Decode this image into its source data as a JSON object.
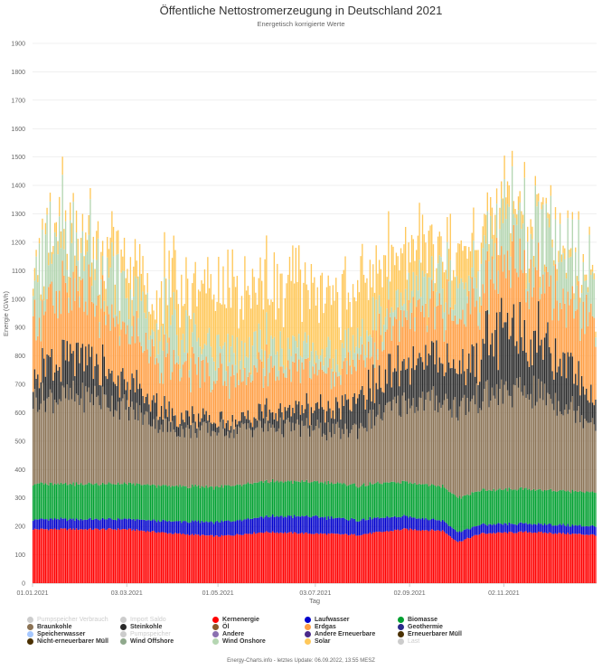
{
  "header": {
    "title": "Öffentliche Nettostromerzeugung in Deutschland 2021",
    "subtitle": "Energetisch korrigierte Werte"
  },
  "footer": {
    "text": "Energy-Charts.info - letztes Update: 06.09.2022, 13:55 MESZ"
  },
  "colors": {
    "background": "#ffffff",
    "grid": "#e6e6e6",
    "axis": "#cccccc"
  },
  "chart_data": {
    "type": "bar",
    "stacked": true,
    "title": "Öffentliche Nettostromerzeugung in Deutschland 2021",
    "subtitle": "Energetisch korrigierte Werte",
    "xlabel": "Tag",
    "ylabel": "Energie (GWh)",
    "ylim": [
      0,
      1900
    ],
    "yticks": [
      0,
      100,
      200,
      300,
      400,
      500,
      600,
      700,
      800,
      900,
      1000,
      1100,
      1200,
      1300,
      1400,
      1500,
      1600,
      1700,
      1800,
      1900
    ],
    "xtick_labels": [
      "01.01.2021",
      "03.03.2021",
      "01.05.2021",
      "03.07.2021",
      "02.09.2021",
      "02.11.2021"
    ],
    "xtick_days": [
      0,
      61,
      120,
      183,
      244,
      305
    ],
    "days": 365,
    "grid": true,
    "legend_position": "bottom",
    "series": [
      {
        "name": "Kernenergie",
        "color": "#ff0000",
        "shown": true,
        "anchors": [
          [
            0,
            190
          ],
          [
            60,
            190
          ],
          [
            90,
            175
          ],
          [
            120,
            165
          ],
          [
            150,
            180
          ],
          [
            180,
            175
          ],
          [
            210,
            170
          ],
          [
            240,
            190
          ],
          [
            265,
            185
          ],
          [
            275,
            145
          ],
          [
            290,
            175
          ],
          [
            320,
            180
          ],
          [
            364,
            170
          ]
        ]
      },
      {
        "name": "Laufwasser",
        "color": "#0000cc",
        "shown": true,
        "anchors": [
          [
            0,
            35
          ],
          [
            60,
            35
          ],
          [
            120,
            50
          ],
          [
            180,
            60
          ],
          [
            240,
            45
          ],
          [
            270,
            35
          ],
          [
            300,
            30
          ],
          [
            364,
            30
          ]
        ]
      },
      {
        "name": "Biomasse",
        "color": "#00a030",
        "shown": true,
        "anchors": [
          [
            0,
            125
          ],
          [
            364,
            120
          ]
        ]
      },
      {
        "name": "Braunkohle",
        "color": "#8b7355",
        "shown": true,
        "anchors": [
          [
            0,
            300
          ],
          [
            40,
            310
          ],
          [
            90,
            200
          ],
          [
            120,
            200
          ],
          [
            170,
            190
          ],
          [
            200,
            180
          ],
          [
            240,
            280
          ],
          [
            270,
            310
          ],
          [
            300,
            340
          ],
          [
            330,
            340
          ],
          [
            364,
            250
          ]
        ]
      },
      {
        "name": "Steinkohle",
        "color": "#2a2a2a",
        "shown": true,
        "anchors": [
          [
            0,
            100
          ],
          [
            30,
            130
          ],
          [
            60,
            90
          ],
          [
            90,
            50
          ],
          [
            130,
            30
          ],
          [
            180,
            70
          ],
          [
            240,
            130
          ],
          [
            280,
            140
          ],
          [
            310,
            220
          ],
          [
            340,
            180
          ],
          [
            364,
            90
          ]
        ]
      },
      {
        "name": "Erdgas",
        "color": "#ff9f45",
        "shown": true,
        "anchors": [
          [
            0,
            200
          ],
          [
            30,
            220
          ],
          [
            60,
            180
          ],
          [
            100,
            170
          ],
          [
            150,
            150
          ],
          [
            200,
            130
          ],
          [
            240,
            160
          ],
          [
            280,
            190
          ],
          [
            320,
            230
          ],
          [
            364,
            250
          ]
        ]
      },
      {
        "name": "Wind Onshore",
        "color": "#b5d6b2",
        "shown": true,
        "anchors": [
          [
            0,
            180
          ],
          [
            40,
            160
          ],
          [
            60,
            140
          ],
          [
            120,
            90
          ],
          [
            180,
            60
          ],
          [
            240,
            70
          ],
          [
            280,
            110
          ],
          [
            320,
            170
          ],
          [
            364,
            150
          ]
        ]
      },
      {
        "name": "Solar",
        "color": "#ffc85a",
        "shown": true,
        "anchors": [
          [
            0,
            30
          ],
          [
            60,
            90
          ],
          [
            120,
            210
          ],
          [
            170,
            230
          ],
          [
            220,
            190
          ],
          [
            270,
            120
          ],
          [
            320,
            40
          ],
          [
            364,
            20
          ]
        ]
      }
    ]
  },
  "legend": [
    {
      "label": "Pumpspeicher Verbrauch",
      "color": "#cccccc",
      "shown": false
    },
    {
      "label": "Import Saldo",
      "color": "#cccccc",
      "shown": false
    },
    {
      "label": "Kernenergie",
      "color": "#ff0000",
      "shown": true
    },
    {
      "label": "Laufwasser",
      "color": "#0000cc",
      "shown": true
    },
    {
      "label": "Biomasse",
      "color": "#00a030",
      "shown": true
    },
    {
      "label": "Braunkohle",
      "color": "#8b7355",
      "shown": true
    },
    {
      "label": "Steinkohle",
      "color": "#2a2a2a",
      "shown": true
    },
    {
      "label": "Öl",
      "color": "#8b5a2b",
      "shown": true
    },
    {
      "label": "Erdgas",
      "color": "#ff9f45",
      "shown": true
    },
    {
      "label": "Geothermie",
      "color": "#2a2a8a",
      "shown": true
    },
    {
      "label": "Speicherwasser",
      "color": "#a6c8ff",
      "shown": true
    },
    {
      "label": "Pumpspeicher",
      "color": "#cccccc",
      "shown": false
    },
    {
      "label": "Andere",
      "color": "#8a70b0",
      "shown": true
    },
    {
      "label": "Andere Erneuerbare",
      "color": "#4a2a8a",
      "shown": true
    },
    {
      "label": "Erneuerbarer Müll",
      "color": "#4a3000",
      "shown": true
    },
    {
      "label": "Nicht-erneuerbarer Müll",
      "color": "#4a3000",
      "shown": true
    },
    {
      "label": "Wind Offshore",
      "color": "#8fa88c",
      "shown": true
    },
    {
      "label": "Wind Onshore",
      "color": "#b5d6b2",
      "shown": true
    },
    {
      "label": "Solar",
      "color": "#ffc85a",
      "shown": true
    },
    {
      "label": "Last",
      "color": "#cccccc",
      "shown": false
    }
  ]
}
